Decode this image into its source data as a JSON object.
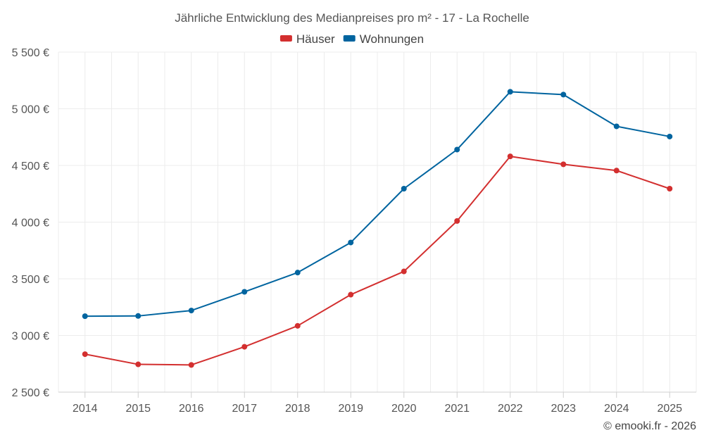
{
  "chart_data": {
    "type": "line",
    "title": "Jährliche Entwicklung des Medianpreises pro m² - 17 - La Rochelle",
    "categories": [
      "2014",
      "2015",
      "2016",
      "2017",
      "2018",
      "2019",
      "2020",
      "2021",
      "2022",
      "2023",
      "2024",
      "2025"
    ],
    "series": [
      {
        "name": "Häuser",
        "color": "#d32f2f",
        "values": [
          2835,
          2745,
          2740,
          2900,
          3085,
          3360,
          3565,
          4010,
          4580,
          4510,
          4455,
          4295
        ]
      },
      {
        "name": "Wohnungen",
        "color": "#00649f",
        "values": [
          3170,
          3172,
          3220,
          3385,
          3555,
          3820,
          4295,
          4640,
          5150,
          5125,
          4845,
          4755
        ]
      }
    ],
    "ylim": [
      2500,
      5500
    ],
    "yticks": [
      2500,
      3000,
      3500,
      4000,
      4500,
      5000,
      5500
    ],
    "ytick_labels": [
      "2 500 €",
      "3 000 €",
      "3 500 €",
      "4 000 €",
      "4 500 €",
      "5 000 €",
      "5 500 €"
    ],
    "grid": true,
    "legend_position": "top-center",
    "xlabel": "",
    "ylabel": ""
  },
  "credit": "© emooki.fr - 2026"
}
